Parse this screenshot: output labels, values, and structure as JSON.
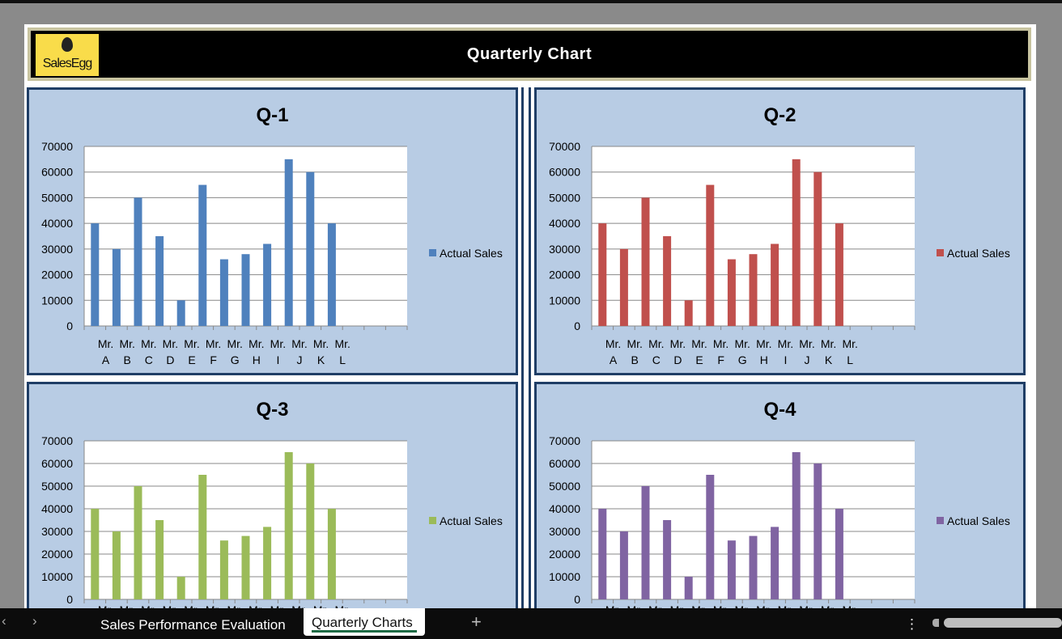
{
  "header": {
    "title": "Quarterly Chart",
    "logo_text": "SalesEgg"
  },
  "colors": {
    "q1": "#4f81bd",
    "q2": "#c0504d",
    "q3": "#9bbb59",
    "q4": "#8064a2"
  },
  "chart_data": [
    {
      "type": "bar",
      "title": "Q-1",
      "categories": [
        "Mr. A",
        "Mr. B",
        "Mr. C",
        "Mr. D",
        "Mr. E",
        "Mr. F",
        "Mr. G",
        "Mr. H",
        "Mr. I",
        "Mr. J",
        "Mr. K",
        "Mr. L",
        "",
        "",
        ""
      ],
      "series": [
        {
          "name": "Actual Sales",
          "values": [
            40000,
            30000,
            50000,
            35000,
            10000,
            55000,
            26000,
            28000,
            32000,
            65000,
            60000,
            40000,
            null,
            null,
            null
          ]
        }
      ],
      "ylim": [
        0,
        70000
      ],
      "yticks": [
        0,
        10000,
        20000,
        30000,
        40000,
        50000,
        60000,
        70000
      ],
      "legend": "right",
      "grid": true
    },
    {
      "type": "bar",
      "title": "Q-2",
      "categories": [
        "Mr. A",
        "Mr. B",
        "Mr. C",
        "Mr. D",
        "Mr. E",
        "Mr. F",
        "Mr. G",
        "Mr. H",
        "Mr. I",
        "Mr. J",
        "Mr. K",
        "Mr. L",
        "",
        "",
        ""
      ],
      "series": [
        {
          "name": "Actual Sales",
          "values": [
            40000,
            30000,
            50000,
            35000,
            10000,
            55000,
            26000,
            28000,
            32000,
            65000,
            60000,
            40000,
            null,
            null,
            null
          ]
        }
      ],
      "ylim": [
        0,
        70000
      ],
      "yticks": [
        0,
        10000,
        20000,
        30000,
        40000,
        50000,
        60000,
        70000
      ],
      "legend": "right",
      "grid": true
    },
    {
      "type": "bar",
      "title": "Q-3",
      "categories": [
        "Mr. A",
        "Mr. B",
        "Mr. C",
        "Mr. D",
        "Mr. E",
        "Mr. F",
        "Mr. G",
        "Mr. H",
        "Mr. I",
        "Mr. J",
        "Mr. K",
        "Mr. L",
        "",
        "",
        ""
      ],
      "series": [
        {
          "name": "Actual Sales",
          "values": [
            40000,
            30000,
            50000,
            35000,
            10000,
            55000,
            26000,
            28000,
            32000,
            65000,
            60000,
            40000,
            null,
            null,
            null
          ]
        }
      ],
      "ylim": [
        0,
        70000
      ],
      "yticks": [
        0,
        10000,
        20000,
        30000,
        40000,
        50000,
        60000,
        70000
      ],
      "legend": "right",
      "grid": true
    },
    {
      "type": "bar",
      "title": "Q-4",
      "categories": [
        "Mr. A",
        "Mr. B",
        "Mr. C",
        "Mr. D",
        "Mr. E",
        "Mr. F",
        "Mr. G",
        "Mr. H",
        "Mr. I",
        "Mr. J",
        "Mr. K",
        "Mr. L",
        "",
        "",
        ""
      ],
      "series": [
        {
          "name": "Actual Sales",
          "values": [
            40000,
            30000,
            50000,
            35000,
            10000,
            55000,
            26000,
            28000,
            32000,
            65000,
            60000,
            40000,
            null,
            null,
            null
          ]
        }
      ],
      "ylim": [
        0,
        70000
      ],
      "yticks": [
        0,
        10000,
        20000,
        30000,
        40000,
        50000,
        60000,
        70000
      ],
      "legend": "right",
      "grid": true
    }
  ],
  "tabs": [
    {
      "label": "Sales Performance Evaluation",
      "active": false
    },
    {
      "label": "Quarterly Charts",
      "active": true
    }
  ],
  "tabbar": {
    "add": "+",
    "prev": "‹",
    "next": "›",
    "more": "⋮"
  }
}
